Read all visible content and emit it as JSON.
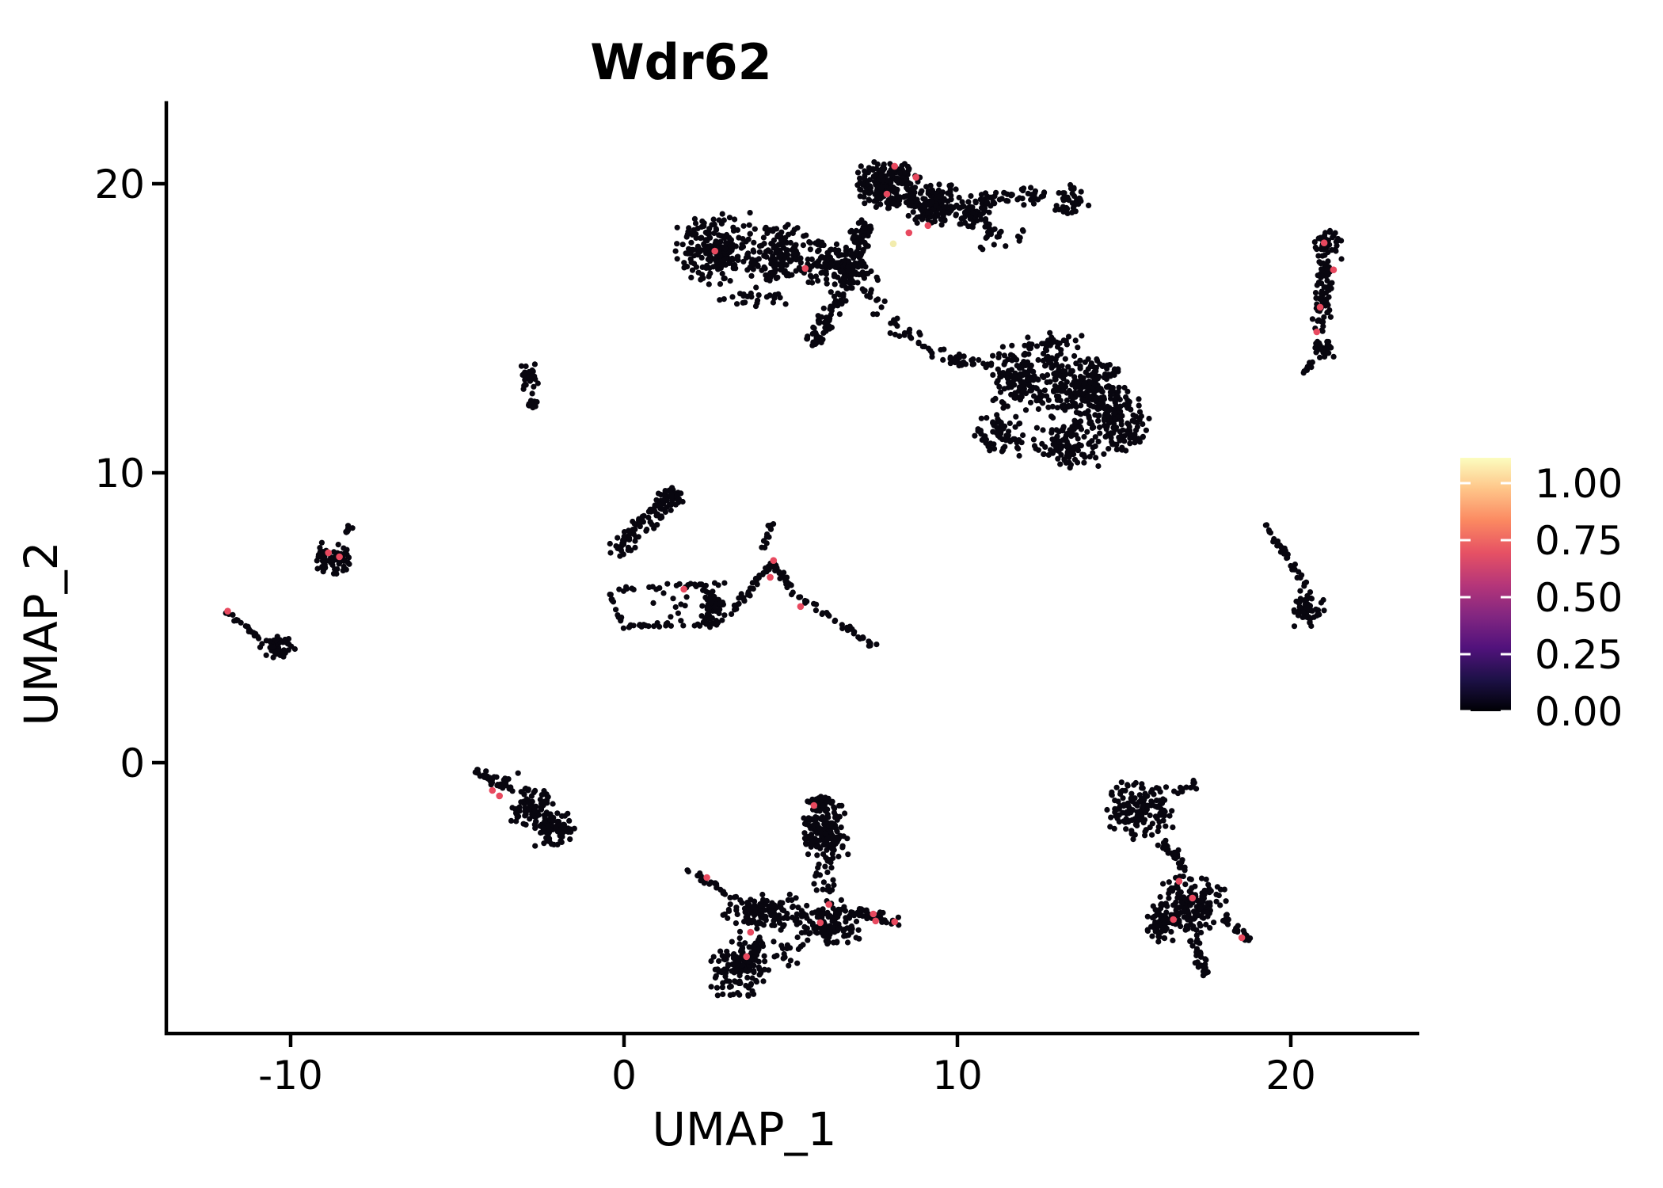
{
  "chart": {
    "title": "Wdr62",
    "kind": "UMAP feature plot (single-cell gene expression)"
  },
  "chart_data": {
    "type": "scatter",
    "title": "Wdr62",
    "xlabel": "UMAP_1",
    "ylabel": "UMAP_2",
    "xlim": [
      -13.72,
      23.8
    ],
    "ylim": [
      -9.36,
      22.84
    ],
    "grid": false,
    "x_ticks": [
      -10,
      0,
      10,
      20
    ],
    "x_tick_labels": [
      "-10",
      "0",
      "10",
      "20"
    ],
    "y_ticks": [
      0,
      10,
      20
    ],
    "y_tick_labels": [
      "0",
      "10",
      "20"
    ],
    "point_color": "#08060f",
    "highlight_color": "#e8495f",
    "max_color": "#f2ecae",
    "colorbar": {
      "position": "right",
      "label_values": [
        "1.00",
        "0.75",
        "0.50",
        "0.25",
        "0.00"
      ],
      "tick_values": [
        1.0,
        0.75,
        0.5,
        0.25,
        0.0
      ],
      "value_range": [
        0,
        1.11
      ],
      "palette": "magma",
      "stops": [
        {
          "offset": 0.0,
          "color": "#000004"
        },
        {
          "offset": 0.125,
          "color": "#1d1147"
        },
        {
          "offset": 0.25,
          "color": "#51127c"
        },
        {
          "offset": 0.375,
          "color": "#822681"
        },
        {
          "offset": 0.5,
          "color": "#b63679"
        },
        {
          "offset": 0.625,
          "color": "#e65164"
        },
        {
          "offset": 0.75,
          "color": "#fb8861"
        },
        {
          "offset": 0.875,
          "color": "#fec488"
        },
        {
          "offset": 1.0,
          "color": "#fcfdbf"
        }
      ]
    },
    "clusters": [
      {
        "name": "top-left-band",
        "parts": [
          {
            "kind": "blob",
            "x": 2.78,
            "y": 17.73,
            "rx": 1.31,
            "ry": 1.31,
            "n": 220
          },
          {
            "kind": "blob",
            "x": 4.8,
            "y": 17.59,
            "rx": 1.19,
            "ry": 1.09,
            "n": 160
          },
          {
            "kind": "blob",
            "x": 6.1,
            "y": 17.32,
            "rx": 0.83,
            "ry": 0.82,
            "n": 80
          },
          {
            "kind": "blob",
            "x": 3.85,
            "y": 16.09,
            "rx": 1.43,
            "ry": 0.41,
            "n": 25
          },
          {
            "kind": "strip",
            "x1": 6.22,
            "y1": 17.18,
            "x2": 7.65,
            "y2": 16.77,
            "w": 0.5,
            "n": 30
          }
        ]
      },
      {
        "name": "top-center-head",
        "parts": [
          {
            "kind": "blob",
            "x": 7.93,
            "y": 20.0,
            "rx": 1.0,
            "ry": 0.93,
            "n": 210
          },
          {
            "kind": "blob",
            "x": 9.31,
            "y": 19.29,
            "rx": 0.95,
            "ry": 0.82,
            "n": 130
          },
          {
            "kind": "blob",
            "x": 10.45,
            "y": 18.96,
            "rx": 0.67,
            "ry": 0.71,
            "n": 70
          },
          {
            "kind": "strip",
            "x1": 10.81,
            "y1": 19.51,
            "x2": 12.64,
            "y2": 19.62,
            "w": 0.72,
            "n": 45
          },
          {
            "kind": "blob",
            "x": 13.4,
            "y": 19.45,
            "rx": 0.59,
            "ry": 0.55,
            "n": 40
          },
          {
            "kind": "blob",
            "x": 11.33,
            "y": 18.14,
            "rx": 0.8,
            "ry": 0.5,
            "n": 20
          }
        ]
      },
      {
        "name": "central-trunk",
        "parts": [
          {
            "kind": "strip",
            "x1": 7.29,
            "y1": 18.63,
            "x2": 6.75,
            "y2": 16.72,
            "w": 0.86,
            "n": 90
          },
          {
            "kind": "strip",
            "x1": 6.75,
            "y1": 16.72,
            "x2": 5.94,
            "y2": 14.91,
            "w": 0.71,
            "n": 60
          },
          {
            "kind": "blob",
            "x": 5.75,
            "y": 14.69,
            "rx": 0.29,
            "ry": 0.38,
            "n": 20
          },
          {
            "kind": "strip",
            "x1": 7.17,
            "y1": 16.36,
            "x2": 8.41,
            "y2": 14.86,
            "w": 0.71,
            "n": 22
          },
          {
            "kind": "strip",
            "x1": 8.41,
            "y1": 14.86,
            "x2": 9.5,
            "y2": 14.12,
            "w": 0.57,
            "n": 18
          }
        ]
      },
      {
        "name": "right-middle-mass",
        "parts": [
          {
            "kind": "strip",
            "x1": 9.5,
            "y1": 13.98,
            "x2": 11.02,
            "y2": 13.71,
            "w": 0.52,
            "n": 30
          },
          {
            "kind": "blob",
            "x": 12.16,
            "y": 13.35,
            "rx": 1.31,
            "ry": 1.23,
            "n": 190
          },
          {
            "kind": "blob",
            "x": 13.87,
            "y": 12.94,
            "rx": 1.31,
            "ry": 1.37,
            "n": 210
          },
          {
            "kind": "blob",
            "x": 14.82,
            "y": 11.79,
            "rx": 0.95,
            "ry": 1.23,
            "n": 130
          },
          {
            "kind": "blob",
            "x": 13.23,
            "y": 10.97,
            "rx": 1.07,
            "ry": 0.96,
            "n": 110
          },
          {
            "kind": "blob",
            "x": 11.26,
            "y": 11.38,
            "rx": 0.83,
            "ry": 0.82,
            "n": 70
          },
          {
            "kind": "blob",
            "x": 12.87,
            "y": 14.53,
            "rx": 0.95,
            "ry": 0.41,
            "n": 25
          }
        ]
      },
      {
        "name": "far-right-strip",
        "parts": [
          {
            "kind": "blob",
            "x": 21.14,
            "y": 17.87,
            "rx": 0.48,
            "ry": 0.6,
            "n": 45
          },
          {
            "kind": "strip",
            "x1": 21.02,
            "y1": 17.32,
            "x2": 20.9,
            "y2": 14.91,
            "w": 0.62,
            "n": 70
          },
          {
            "kind": "blob",
            "x": 20.95,
            "y": 14.31,
            "rx": 0.38,
            "ry": 0.44,
            "n": 28
          },
          {
            "kind": "strip",
            "x1": 20.67,
            "y1": 13.82,
            "x2": 20.36,
            "y2": 13.43,
            "w": 0.24,
            "n": 8
          }
        ]
      },
      {
        "name": "right-arc",
        "parts": [
          {
            "kind": "strip",
            "x1": 19.19,
            "y1": 8.29,
            "x2": 20.0,
            "y2": 6.92,
            "w": 0.19,
            "n": 22
          },
          {
            "kind": "strip",
            "x1": 20.0,
            "y1": 6.92,
            "x2": 20.48,
            "y2": 5.99,
            "w": 0.24,
            "n": 16
          },
          {
            "kind": "blob",
            "x": 20.52,
            "y": 5.28,
            "rx": 0.48,
            "ry": 0.68,
            "n": 55
          }
        ]
      },
      {
        "name": "small-mid-left",
        "parts": [
          {
            "kind": "blob",
            "x": -2.85,
            "y": 13.27,
            "rx": 0.33,
            "ry": 0.55,
            "n": 30
          },
          {
            "kind": "blob",
            "x": -2.73,
            "y": 12.45,
            "rx": 0.24,
            "ry": 0.33,
            "n": 12
          }
        ]
      },
      {
        "name": "left-small",
        "parts": [
          {
            "kind": "blob",
            "x": -8.74,
            "y": 7.03,
            "rx": 0.62,
            "ry": 0.6,
            "n": 65
          },
          {
            "kind": "blob",
            "x": -8.27,
            "y": 8.02,
            "rx": 0.19,
            "ry": 0.22,
            "n": 7
          }
        ]
      },
      {
        "name": "far-left-arc",
        "parts": [
          {
            "kind": "strip",
            "x1": -11.9,
            "y1": 5.2,
            "x2": -10.88,
            "y2": 4.27,
            "w": 0.19,
            "n": 20
          },
          {
            "kind": "blob",
            "x": -10.4,
            "y": 3.97,
            "rx": 0.57,
            "ry": 0.49,
            "n": 48
          }
        ]
      },
      {
        "name": "middle-left-complex",
        "parts": [
          {
            "kind": "strip",
            "x1": -0.24,
            "y1": 7.28,
            "x2": 1.54,
            "y2": 9.33,
            "w": 0.86,
            "n": 115
          },
          {
            "kind": "strip",
            "x1": -0.38,
            "y1": 5.99,
            "x2": 3.02,
            "y2": 6.18,
            "w": 0.24,
            "n": 26
          },
          {
            "kind": "strip",
            "x1": -0.4,
            "y1": 5.83,
            "x2": -0.05,
            "y2": 4.73,
            "w": 0.19,
            "n": 12
          },
          {
            "kind": "strip",
            "x1": -0.05,
            "y1": 4.71,
            "x2": 2.8,
            "y2": 4.79,
            "w": 0.19,
            "n": 26
          },
          {
            "kind": "blob",
            "x": 2.68,
            "y": 5.44,
            "rx": 0.43,
            "ry": 0.82,
            "n": 65
          },
          {
            "kind": "blob",
            "x": 1.52,
            "y": 5.39,
            "rx": 0.95,
            "ry": 0.55,
            "n": 10
          },
          {
            "kind": "strip",
            "x1": 3.16,
            "y1": 5.12,
            "x2": 4.47,
            "y2": 6.89,
            "w": 0.29,
            "n": 38
          },
          {
            "kind": "strip",
            "x1": 4.47,
            "y1": 6.89,
            "x2": 5.04,
            "y2": 5.88,
            "w": 0.29,
            "n": 22
          },
          {
            "kind": "strip",
            "x1": 5.04,
            "y1": 5.88,
            "x2": 7.6,
            "y2": 3.97,
            "w": 0.24,
            "n": 42
          },
          {
            "kind": "strip",
            "x1": 4.13,
            "y1": 7.44,
            "x2": 4.49,
            "y2": 8.29,
            "w": 0.24,
            "n": 13
          }
        ]
      },
      {
        "name": "bottom-left",
        "parts": [
          {
            "kind": "strip",
            "x1": -4.47,
            "y1": -0.25,
            "x2": -3.28,
            "y2": -1.01,
            "w": 0.33,
            "n": 26
          },
          {
            "kind": "blob",
            "x": -2.76,
            "y": -1.56,
            "rx": 0.71,
            "ry": 0.77,
            "n": 85
          },
          {
            "kind": "blob",
            "x": -2.09,
            "y": -2.3,
            "rx": 0.71,
            "ry": 0.68,
            "n": 75
          },
          {
            "kind": "blob",
            "x": -3.52,
            "y": -0.63,
            "rx": 0.48,
            "ry": 0.27,
            "n": 12
          }
        ]
      },
      {
        "name": "bottom-center",
        "parts": [
          {
            "kind": "blob",
            "x": 5.99,
            "y": -2.33,
            "rx": 0.76,
            "ry": 1.23,
            "n": 170
          },
          {
            "kind": "blob",
            "x": 5.89,
            "y": -1.34,
            "rx": 0.43,
            "ry": 0.27,
            "n": 25
          },
          {
            "kind": "strip",
            "x1": 5.99,
            "y1": -3.53,
            "x2": 5.99,
            "y2": -4.51,
            "w": 0.71,
            "n": 18
          },
          {
            "kind": "strip",
            "x1": 1.9,
            "y1": -3.69,
            "x2": 3.61,
            "y2": -4.84,
            "w": 0.29,
            "n": 26
          },
          {
            "kind": "blob",
            "x": 4.2,
            "y": -5.17,
            "rx": 1.31,
            "ry": 0.68,
            "n": 120
          },
          {
            "kind": "blob",
            "x": 6.03,
            "y": -5.55,
            "rx": 1.07,
            "ry": 0.82,
            "n": 140
          },
          {
            "kind": "strip",
            "x1": 6.98,
            "y1": -5.12,
            "x2": 8.27,
            "y2": -5.55,
            "w": 0.43,
            "n": 40
          },
          {
            "kind": "blob",
            "x": 3.49,
            "y": -7.09,
            "rx": 0.95,
            "ry": 1.04,
            "n": 150
          },
          {
            "kind": "strip",
            "x1": 4.04,
            "y1": -6.1,
            "x2": 3.73,
            "y2": -6.87,
            "w": 0.59,
            "n": 25
          },
          {
            "kind": "blob",
            "x": 4.94,
            "y": -6.48,
            "rx": 0.59,
            "ry": 0.55,
            "n": 18
          }
        ]
      },
      {
        "name": "bottom-right",
        "parts": [
          {
            "kind": "blob",
            "x": 15.49,
            "y": -1.61,
            "rx": 1.07,
            "ry": 1.09,
            "n": 150
          },
          {
            "kind": "strip",
            "x1": 16.48,
            "y1": -1.01,
            "x2": 17.2,
            "y2": -0.74,
            "w": 0.33,
            "n": 13
          },
          {
            "kind": "strip",
            "x1": 16.2,
            "y1": -2.71,
            "x2": 16.82,
            "y2": -3.8,
            "w": 0.48,
            "n": 30
          },
          {
            "kind": "blob",
            "x": 17.05,
            "y": -4.9,
            "rx": 1.07,
            "ry": 1.15,
            "n": 170
          },
          {
            "kind": "blob",
            "x": 16.06,
            "y": -5.55,
            "rx": 0.48,
            "ry": 0.68,
            "n": 45
          },
          {
            "kind": "strip",
            "x1": 17.05,
            "y1": -6.1,
            "x2": 17.48,
            "y2": -7.36,
            "w": 0.43,
            "n": 35
          },
          {
            "kind": "strip",
            "x1": 18.0,
            "y1": -5.39,
            "x2": 18.76,
            "y2": -6.1,
            "w": 0.29,
            "n": 20
          }
        ]
      }
    ],
    "highlights": [
      {
        "x": 8.12,
        "y": 20.6,
        "v": 0.7
      },
      {
        "x": 8.76,
        "y": 20.22,
        "v": 0.7
      },
      {
        "x": 7.89,
        "y": 19.64,
        "v": 0.7
      },
      {
        "x": 9.12,
        "y": 18.55,
        "v": 0.7
      },
      {
        "x": 8.55,
        "y": 18.3,
        "v": 0.7
      },
      {
        "x": 5.44,
        "y": 17.07,
        "v": 0.7
      },
      {
        "x": 2.73,
        "y": 17.67,
        "v": 0.7
      },
      {
        "x": 8.08,
        "y": 17.92,
        "v": 1.1
      },
      {
        "x": 4.49,
        "y": 6.98,
        "v": 0.7
      },
      {
        "x": 4.39,
        "y": 6.4,
        "v": 0.7
      },
      {
        "x": 1.8,
        "y": 5.99,
        "v": 0.7
      },
      {
        "x": 5.3,
        "y": 5.39,
        "v": 0.7
      },
      {
        "x": -11.88,
        "y": 5.23,
        "v": 0.7
      },
      {
        "x": -8.86,
        "y": 7.25,
        "v": 0.7
      },
      {
        "x": -8.53,
        "y": 7.11,
        "v": 0.7
      },
      {
        "x": 21.0,
        "y": 17.95,
        "v": 0.7
      },
      {
        "x": 21.28,
        "y": 17.02,
        "v": 0.7
      },
      {
        "x": 20.88,
        "y": 15.73,
        "v": 0.7
      },
      {
        "x": 20.78,
        "y": 14.88,
        "v": 0.7
      },
      {
        "x": -3.94,
        "y": -0.96,
        "v": 0.7
      },
      {
        "x": -3.73,
        "y": -1.15,
        "v": 0.7
      },
      {
        "x": 5.7,
        "y": -1.48,
        "v": 0.7
      },
      {
        "x": 2.49,
        "y": -3.97,
        "v": 0.7
      },
      {
        "x": 6.15,
        "y": -4.9,
        "v": 0.7
      },
      {
        "x": 5.89,
        "y": -5.53,
        "v": 0.7
      },
      {
        "x": 7.48,
        "y": -5.23,
        "v": 0.7
      },
      {
        "x": 7.55,
        "y": -5.47,
        "v": 0.7
      },
      {
        "x": 8.12,
        "y": -5.5,
        "v": 0.7
      },
      {
        "x": 3.8,
        "y": -5.86,
        "v": 0.7
      },
      {
        "x": 3.68,
        "y": -6.7,
        "v": 0.7
      },
      {
        "x": 16.65,
        "y": -4.1,
        "v": 0.7
      },
      {
        "x": 17.05,
        "y": -4.68,
        "v": 0.7
      },
      {
        "x": 16.48,
        "y": -5.42,
        "v": 0.7
      },
      {
        "x": 18.53,
        "y": -6.05,
        "v": 0.7
      }
    ]
  }
}
